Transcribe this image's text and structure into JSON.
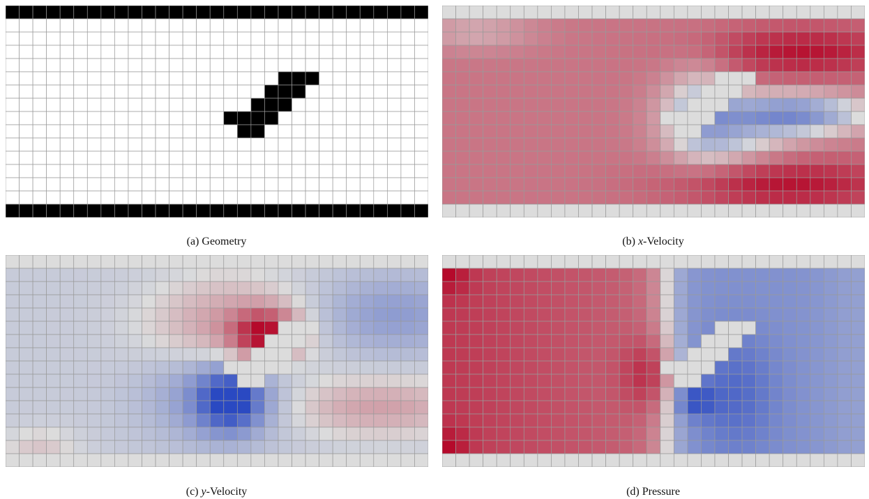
{
  "figure": {
    "grid": {
      "cols": 31,
      "rows": 16
    },
    "panels": [
      {
        "key": "geometry",
        "label": "(a)",
        "var": "",
        "rest": " Geometry"
      },
      {
        "key": "xvel",
        "label": "(b)",
        "var": "x",
        "rest": "-Velocity"
      },
      {
        "key": "yvel",
        "label": "(c)",
        "var": "y",
        "rest": "-Velocity"
      },
      {
        "key": "pressure",
        "label": "(d)",
        "var": "",
        "rest": " Pressure"
      }
    ],
    "colors": {
      "solid": "#000000",
      "fluid": "#ffffff",
      "neutral": "#dcdcdc",
      "gridline": "#999999",
      "cool_dark": "#2a49c2",
      "warm_dark": "#b40426"
    },
    "obstacle_cells": [
      [
        5,
        20
      ],
      [
        5,
        21
      ],
      [
        5,
        22
      ],
      [
        6,
        19
      ],
      [
        6,
        20
      ],
      [
        6,
        21
      ],
      [
        7,
        18
      ],
      [
        7,
        19
      ],
      [
        7,
        20
      ],
      [
        8,
        16
      ],
      [
        8,
        17
      ],
      [
        8,
        18
      ],
      [
        8,
        19
      ],
      [
        9,
        17
      ],
      [
        9,
        18
      ]
    ]
  }
}
